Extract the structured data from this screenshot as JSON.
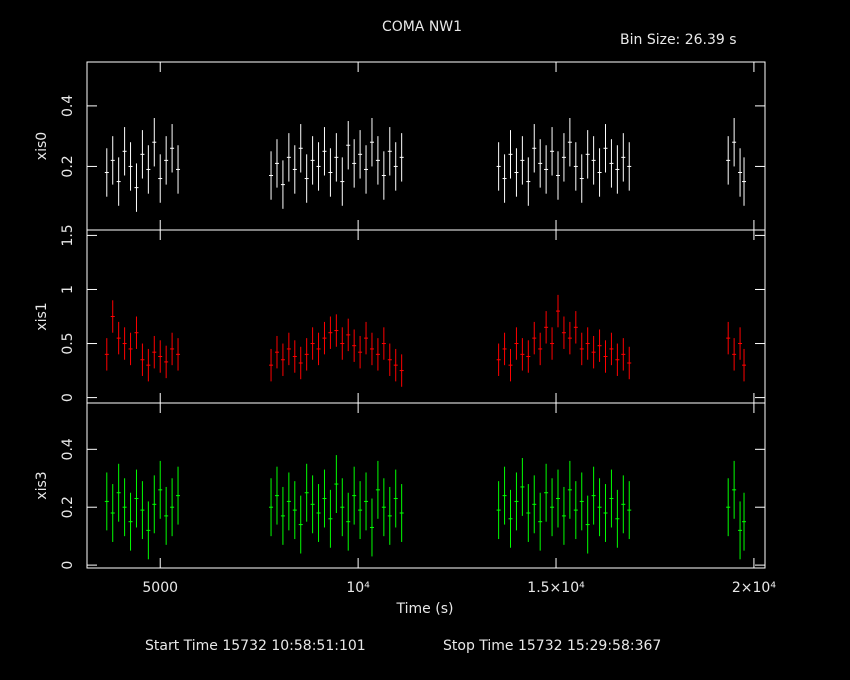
{
  "figure": {
    "title": "COMA NW1",
    "annotation": "Bin Size: 26.39 s",
    "x_label": "Time (s)",
    "start_time": "Start Time 15732 10:58:51:101",
    "stop_time": "Stop Time 15732 15:29:58:367"
  },
  "chart_data": [
    {
      "type": "errorbar",
      "y_label": "xis0",
      "color": "#ffffff",
      "ylim": [
        -0.01,
        0.545
      ],
      "yticks": [
        0.2,
        0.4
      ],
      "yerr": 0.08,
      "x": [
        3650,
        3800,
        3950,
        4100,
        4250,
        4400,
        4550,
        4700,
        4850,
        5000,
        5150,
        5300,
        5450,
        7800,
        7950,
        8100,
        8250,
        8400,
        8550,
        8700,
        8850,
        9000,
        9150,
        9300,
        9450,
        9600,
        9750,
        9900,
        10050,
        10200,
        10350,
        10500,
        10650,
        10800,
        10950,
        11100,
        13550,
        13700,
        13850,
        14000,
        14150,
        14300,
        14450,
        14600,
        14750,
        14900,
        15050,
        15200,
        15350,
        15500,
        15650,
        15800,
        15950,
        16100,
        16250,
        16400,
        16550,
        16700,
        16850,
        19350,
        19500,
        19650,
        19750
      ],
      "values": [
        0.18,
        0.22,
        0.15,
        0.25,
        0.2,
        0.13,
        0.24,
        0.19,
        0.28,
        0.16,
        0.22,
        0.26,
        0.19,
        0.17,
        0.21,
        0.14,
        0.23,
        0.19,
        0.26,
        0.16,
        0.22,
        0.2,
        0.25,
        0.18,
        0.23,
        0.15,
        0.27,
        0.21,
        0.24,
        0.19,
        0.28,
        0.22,
        0.17,
        0.25,
        0.2,
        0.23,
        0.2,
        0.16,
        0.24,
        0.18,
        0.22,
        0.15,
        0.26,
        0.21,
        0.19,
        0.25,
        0.17,
        0.23,
        0.28,
        0.2,
        0.16,
        0.24,
        0.22,
        0.18,
        0.26,
        0.21,
        0.19,
        0.23,
        0.2,
        0.22,
        0.28,
        0.18,
        0.15
      ]
    },
    {
      "type": "errorbar",
      "y_label": "xis1",
      "color": "#ff0000",
      "ylim": [
        -0.05,
        1.55
      ],
      "yticks": [
        0,
        0.5,
        1,
        1.5
      ],
      "yerr": 0.15,
      "x": [
        3650,
        3800,
        3950,
        4100,
        4250,
        4400,
        4550,
        4700,
        4850,
        5000,
        5150,
        5300,
        5450,
        7800,
        7950,
        8100,
        8250,
        8400,
        8550,
        8700,
        8850,
        9000,
        9150,
        9300,
        9450,
        9600,
        9750,
        9900,
        10050,
        10200,
        10350,
        10500,
        10650,
        10800,
        10950,
        11100,
        13550,
        13700,
        13850,
        14000,
        14150,
        14300,
        14450,
        14600,
        14750,
        14900,
        15050,
        15200,
        15350,
        15500,
        15650,
        15800,
        15950,
        16100,
        16250,
        16400,
        16550,
        16700,
        16850,
        19350,
        19500,
        19650,
        19750
      ],
      "values": [
        0.4,
        0.75,
        0.55,
        0.5,
        0.45,
        0.6,
        0.35,
        0.3,
        0.42,
        0.38,
        0.33,
        0.45,
        0.4,
        0.3,
        0.42,
        0.35,
        0.45,
        0.38,
        0.32,
        0.4,
        0.5,
        0.45,
        0.55,
        0.6,
        0.62,
        0.5,
        0.58,
        0.48,
        0.42,
        0.55,
        0.45,
        0.4,
        0.5,
        0.35,
        0.3,
        0.25,
        0.35,
        0.45,
        0.3,
        0.5,
        0.4,
        0.38,
        0.55,
        0.45,
        0.65,
        0.5,
        0.8,
        0.6,
        0.55,
        0.65,
        0.45,
        0.5,
        0.42,
        0.48,
        0.38,
        0.45,
        0.35,
        0.4,
        0.32,
        0.55,
        0.4,
        0.5,
        0.3
      ]
    },
    {
      "type": "errorbar",
      "y_label": "xis3",
      "color": "#00ff00",
      "ylim": [
        -0.01,
        0.56
      ],
      "yticks": [
        0,
        0.2,
        0.4
      ],
      "yerr": 0.1,
      "x": [
        3650,
        3800,
        3950,
        4100,
        4250,
        4400,
        4550,
        4700,
        4850,
        5000,
        5150,
        5300,
        5450,
        7800,
        7950,
        8100,
        8250,
        8400,
        8550,
        8700,
        8850,
        9000,
        9150,
        9300,
        9450,
        9600,
        9750,
        9900,
        10050,
        10200,
        10350,
        10500,
        10650,
        10800,
        10950,
        11100,
        13550,
        13700,
        13850,
        14000,
        14150,
        14300,
        14450,
        14600,
        14750,
        14900,
        15050,
        15200,
        15350,
        15500,
        15650,
        15800,
        15950,
        16100,
        16250,
        16400,
        16550,
        16700,
        16850,
        19350,
        19500,
        19650,
        19750
      ],
      "values": [
        0.22,
        0.18,
        0.25,
        0.2,
        0.15,
        0.23,
        0.19,
        0.12,
        0.21,
        0.26,
        0.17,
        0.2,
        0.24,
        0.2,
        0.24,
        0.17,
        0.22,
        0.19,
        0.14,
        0.25,
        0.21,
        0.18,
        0.23,
        0.16,
        0.28,
        0.2,
        0.15,
        0.24,
        0.19,
        0.22,
        0.13,
        0.26,
        0.2,
        0.17,
        0.23,
        0.18,
        0.19,
        0.24,
        0.16,
        0.22,
        0.27,
        0.18,
        0.21,
        0.15,
        0.25,
        0.2,
        0.23,
        0.17,
        0.26,
        0.19,
        0.22,
        0.14,
        0.24,
        0.2,
        0.18,
        0.23,
        0.16,
        0.21,
        0.19,
        0.2,
        0.26,
        0.12,
        0.15
      ],
      "xlim": [
        3150,
        20280
      ],
      "xticks": [
        5000,
        {
          "value": 10000,
          "label": "10⁴"
        },
        {
          "value": 15000,
          "label": "1.5×10⁴"
        },
        {
          "value": 20000,
          "label": "2×10⁴"
        }
      ]
    }
  ]
}
